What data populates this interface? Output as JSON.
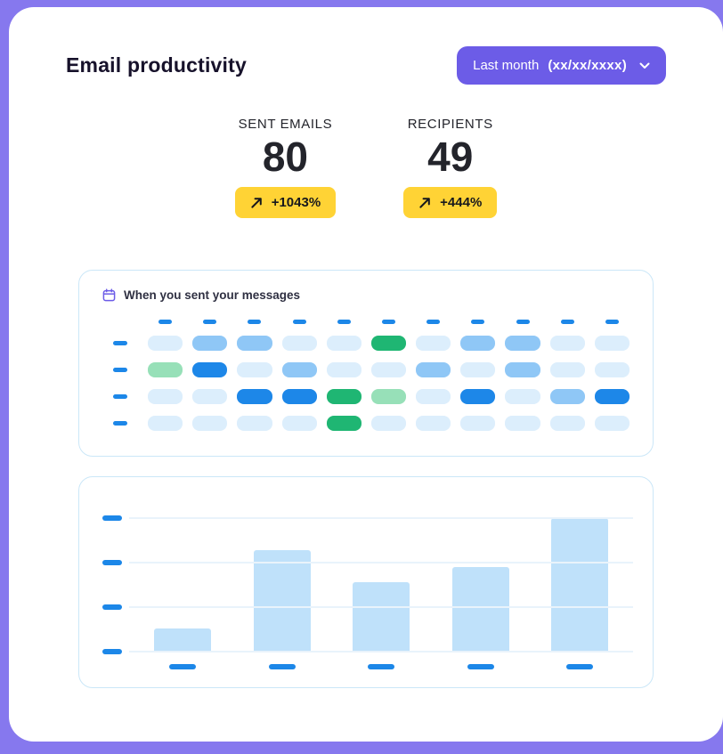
{
  "page": {
    "title": "Email productivity"
  },
  "period_selector": {
    "label": "Last month",
    "value": "(xx/xx/xxxx)",
    "chevron_icon": "chevron-down"
  },
  "stats": [
    {
      "label": "SENT EMAILS",
      "value": "80",
      "delta": "+1043%",
      "trend_icon": "arrow-up-right"
    },
    {
      "label": "RECIPIENTS",
      "value": "49",
      "delta": "+444%",
      "trend_icon": "arrow-up-right"
    }
  ],
  "heatmap_card": {
    "title": "When you sent your messages",
    "icon": "calendar-icon"
  },
  "colors": {
    "background_purple": "#8678EE",
    "accent_purple": "#6C5CE7",
    "badge_yellow": "#FFD335",
    "dash_blue": "#1C87E8",
    "bar_fill": "#BFE1FA",
    "card_border": "#CBE7F8",
    "gridline": "#E9F3FB",
    "text_dark": "#23242B"
  },
  "chart_data": [
    {
      "type": "heatmap",
      "title": "When you sent your messages",
      "rows": 4,
      "columns": 11,
      "palette": {
        "0": "#DCEEFC",
        "1": "#8FC7F6",
        "2": "#1D87E8",
        "3": "#97E0B8",
        "4": "#1FB673"
      },
      "palette_legend": {
        "0": "light-blue-low",
        "1": "medium-blue-mid",
        "2": "strong-blue-high",
        "3": "light-green",
        "4": "strong-green-peak"
      },
      "cells": [
        [
          0,
          1,
          1,
          0,
          0,
          4,
          0,
          1,
          1,
          0,
          0
        ],
        [
          3,
          2,
          0,
          1,
          0,
          0,
          1,
          0,
          1,
          0,
          0
        ],
        [
          0,
          0,
          2,
          2,
          4,
          3,
          0,
          2,
          0,
          1,
          2
        ],
        [
          0,
          0,
          0,
          0,
          4,
          0,
          0,
          0,
          0,
          0,
          0
        ]
      ],
      "axis_ticks": "unlabeled dash placeholders: 11 column ticks on top, 4 row ticks on left"
    },
    {
      "type": "bar",
      "categories": [
        "",
        "",
        "",
        "",
        ""
      ],
      "values": [
        17,
        76,
        52,
        63,
        100
      ],
      "ylim": [
        0,
        100
      ],
      "gridlines": 4,
      "bar_color": "#BFE1FA",
      "axis_ticks": "unlabeled dash placeholders: 4 y-axis ticks, 5 x-axis ticks under bars"
    }
  ]
}
